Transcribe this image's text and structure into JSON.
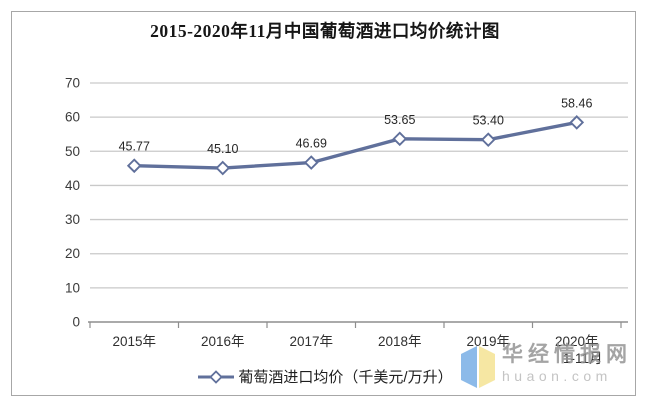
{
  "header": {
    "title": "2015-2020年11月中国葡萄酒进口均价统计图"
  },
  "chart_data": {
    "type": "line",
    "title": "2015-2020年11月中国葡萄酒进口均价统计图",
    "categories": [
      "2015年",
      "2016年",
      "2017年",
      "2018年",
      "2019年",
      "2020年"
    ],
    "category_sublabels": [
      "",
      "",
      "",
      "",
      "",
      "1-11月"
    ],
    "series": [
      {
        "name": "葡萄酒进口均价（千美元/万升）",
        "values": [
          45.77,
          45.1,
          46.69,
          53.65,
          53.4,
          58.46
        ],
        "point_labels": [
          "45.77",
          "45.10",
          "46.69",
          "53.65",
          "53.40",
          "58.46"
        ]
      }
    ],
    "yticks": [
      0,
      10,
      20,
      30,
      40,
      50,
      60,
      70
    ],
    "ylim": [
      0,
      70
    ],
    "grid": true,
    "legend_position": "bottom",
    "line_color": "#60709b",
    "marker": "open-diamond",
    "marker_fill": "#ffffff",
    "gridline_color": "#c9c9c9",
    "axis_color": "#8e8e8e",
    "label_color": "#2f2f2f"
  },
  "legend": {
    "label": "葡萄酒进口均价（千美元/万升）"
  },
  "watermark": {
    "name": "华经情报网",
    "domain": "huaon.com",
    "logo_colors": {
      "left": "#8cbae9",
      "right": "#f6e7a3"
    }
  }
}
